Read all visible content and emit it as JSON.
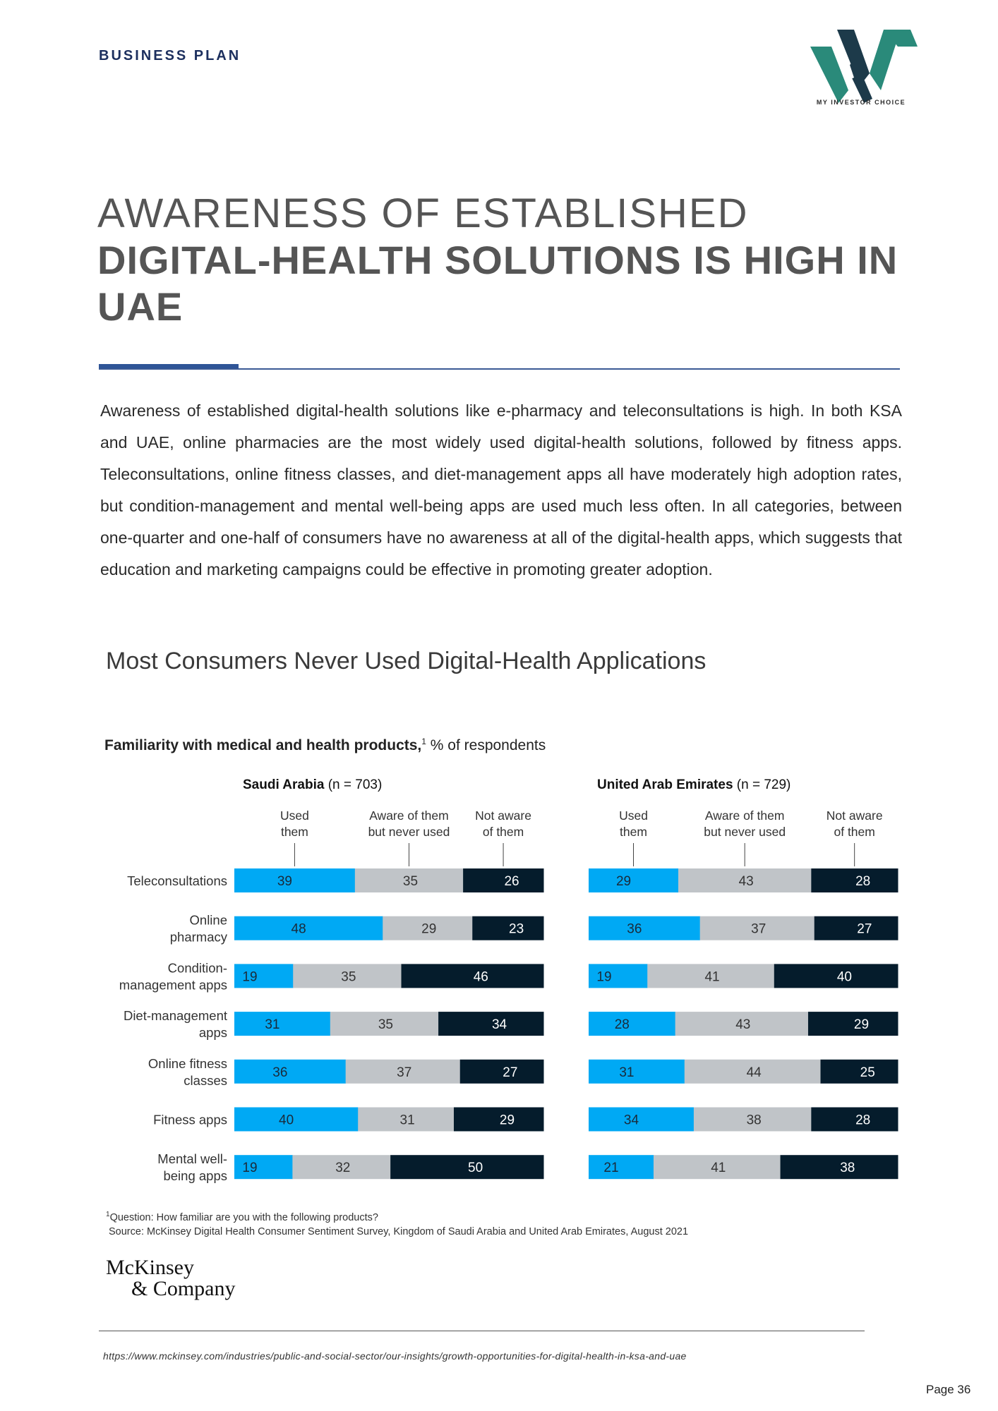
{
  "header": {
    "label": "BUSINESS PLAN",
    "logo_text": "MY INVESTOR CHOICE"
  },
  "title": {
    "line1": "AWARENESS OF ESTABLISHED",
    "line2": "DIGITAL-HEALTH SOLUTIONS IS HIGH IN UAE"
  },
  "intro": "Awareness of established digital-health solutions like e-pharmacy and teleconsultations is high. In both KSA and UAE, online pharmacies are the most widely used digital-health solutions, followed by fitness apps. Teleconsultations, online fitness classes, and diet-management apps all have moderately high adoption rates, but condition-management and mental well-being apps are used much less often. In all categories, between one-quarter and one-half of consumers have no awareness at all of the digital-health apps, which suggests that education and marketing campaigns could be effective in promoting greater adoption.",
  "chart_heading": "Most Consumers Never Used Digital-Health Applications",
  "chart_subtitle": {
    "bold": "Familiarity with medical and health products,",
    "sup": "1",
    "rest": " % of respondents"
  },
  "chart_data": {
    "type": "bar",
    "stacked": true,
    "orientation": "horizontal",
    "unit": "% of respondents",
    "categories": [
      [
        "Teleconsultations"
      ],
      [
        "Online",
        "pharmacy"
      ],
      [
        "Condition-",
        "management apps"
      ],
      [
        "Diet-management",
        "apps"
      ],
      [
        "Online fitness",
        "classes"
      ],
      [
        "Fitness apps"
      ],
      [
        "Mental well-",
        "being apps"
      ]
    ],
    "segment_labels": [
      [
        "Used",
        "them"
      ],
      [
        "Aware of them",
        "but never used"
      ],
      [
        "Not aware",
        "of them"
      ]
    ],
    "colors": [
      "#00a9f4",
      "#c0c4c8",
      "#051c2c"
    ],
    "label_colors": [
      "#1a2a3a",
      "#333333",
      "#ffffff"
    ],
    "panels": [
      {
        "name_bold": "Saudi Arabia",
        "name_rest": " (n = 703)",
        "series": [
          {
            "values": [
              39,
              48,
              19,
              31,
              36,
              40,
              19
            ]
          },
          {
            "values": [
              35,
              29,
              35,
              35,
              37,
              31,
              32
            ]
          },
          {
            "values": [
              26,
              23,
              46,
              34,
              27,
              29,
              50
            ]
          }
        ]
      },
      {
        "name_bold": "United Arab Emirates",
        "name_rest": " (n = 729)",
        "series": [
          {
            "values": [
              29,
              36,
              19,
              28,
              31,
              34,
              21
            ]
          },
          {
            "values": [
              43,
              37,
              41,
              43,
              44,
              38,
              41
            ]
          },
          {
            "values": [
              28,
              27,
              40,
              29,
              25,
              28,
              38
            ]
          }
        ]
      }
    ]
  },
  "footnote": {
    "sup": "1",
    "question": "Question: How familiar are you with the following products?",
    "source": "Source: McKinsey Digital Health Consumer Sentiment Survey, Kingdom of Saudi Arabia and United Arab Emirates, August 2021"
  },
  "brand": {
    "line1": "McKinsey",
    "line2": "& Company"
  },
  "url": "https://www.mckinsey.com/industries/public-and-social-sector/our-insights/growth-opportunities-for-digital-health-in-ksa-and-uae",
  "page": "Page 36"
}
